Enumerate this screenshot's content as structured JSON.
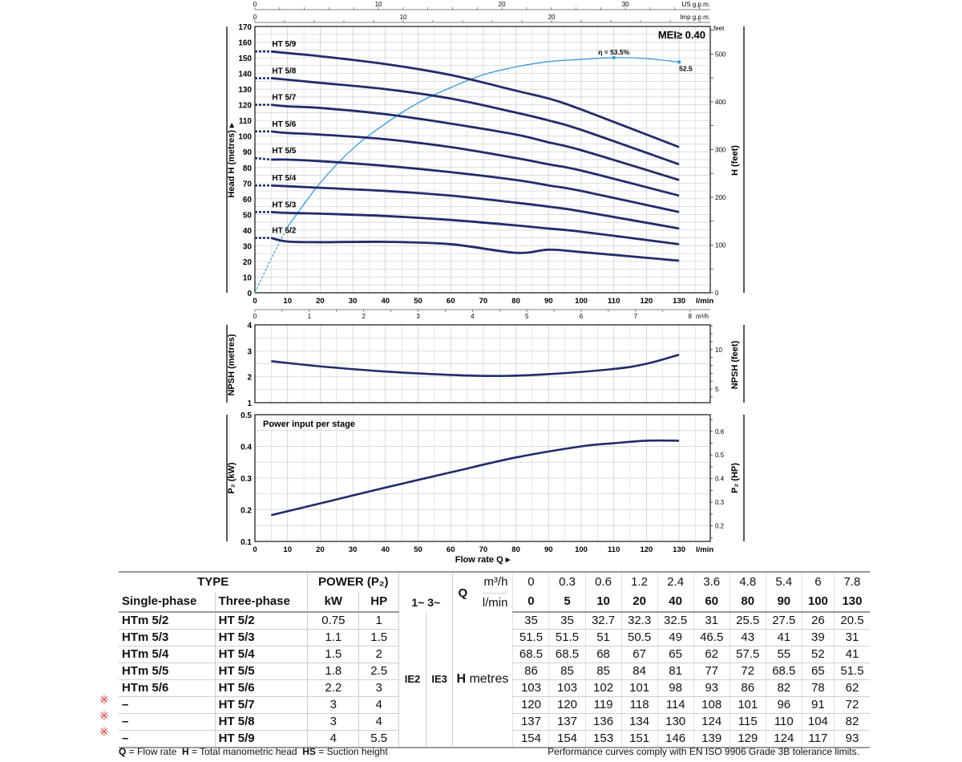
{
  "chart_data": [
    {
      "type": "line",
      "name": "head-curves",
      "xlabel": "l/min",
      "ylabel": "Head H (metres) ▸",
      "ylabel_right": "H (feet)",
      "feet_unit": "feet",
      "xlim": [
        0,
        139.6
      ],
      "ylim": [
        0,
        170
      ],
      "x_ticks": [
        0,
        10,
        20,
        30,
        40,
        50,
        60,
        70,
        80,
        90,
        100,
        110,
        120,
        130
      ],
      "y_ticks": [
        0,
        10,
        20,
        30,
        40,
        50,
        60,
        70,
        80,
        90,
        100,
        110,
        120,
        130,
        140,
        150,
        160,
        170
      ],
      "feet_ticks": [
        0,
        100,
        200,
        300,
        400,
        500
      ],
      "top_axis_us": {
        "label": "US g.p.m.",
        "ticks": [
          0,
          10,
          20,
          30
        ]
      },
      "top_axis_imp": {
        "label": "Imp g.p.m.",
        "ticks": [
          0,
          10,
          20
        ]
      },
      "bottom_axis_m3h": {
        "label": "m³/h",
        "ticks": [
          0,
          1,
          2,
          3,
          4,
          5,
          6,
          7,
          8
        ]
      },
      "annotation_mei": "MEI≥ 0.40",
      "x": [
        0,
        5,
        10,
        20,
        40,
        60,
        80,
        90,
        100,
        130
      ],
      "series": [
        {
          "name": "HT 5/9",
          "values": [
            154,
            154,
            153,
            151,
            146,
            139,
            129,
            124,
            117,
            93
          ]
        },
        {
          "name": "HT 5/8",
          "values": [
            137,
            137,
            136,
            134,
            130,
            124,
            115,
            110,
            104,
            82
          ]
        },
        {
          "name": "HT 5/7",
          "values": [
            120,
            120,
            119,
            118,
            114,
            108,
            101,
            96,
            91,
            72
          ]
        },
        {
          "name": "HT 5/6",
          "values": [
            103,
            103,
            102,
            101,
            98,
            93,
            86,
            82,
            78,
            62
          ]
        },
        {
          "name": "HT 5/5",
          "values": [
            86,
            85,
            85,
            84,
            81,
            77,
            72,
            68.5,
            65,
            51.5
          ]
        },
        {
          "name": "HT 5/4",
          "values": [
            68.5,
            68.5,
            68,
            67,
            65,
            62,
            57.5,
            55,
            52,
            41
          ]
        },
        {
          "name": "HT 5/3",
          "values": [
            51.5,
            51.5,
            51,
            50.5,
            49,
            46.5,
            43,
            41,
            39,
            31
          ]
        },
        {
          "name": "HT 5/2",
          "values": [
            35,
            35,
            32.7,
            32.3,
            32.5,
            31,
            25.5,
            27.5,
            26,
            20.5
          ]
        }
      ],
      "efficiency": {
        "name": "η",
        "x": [
          0,
          5,
          10,
          20,
          30,
          40,
          50,
          60,
          70,
          80,
          90,
          100,
          110,
          120,
          130
        ],
        "values": [
          0,
          7.8,
          15,
          25,
          32.8,
          38.5,
          43.2,
          46.7,
          49.6,
          51.4,
          52.6,
          53.1,
          53.5,
          53.3,
          52.5
        ],
        "scale_max": 60.6,
        "peak_label": "η = 53.5%",
        "end_label": "52.5"
      }
    },
    {
      "type": "line",
      "name": "npsh-curve",
      "ylabel": "NPSH (metres)",
      "ylabel_right": "NPSH (feet)",
      "ylim": [
        1,
        4
      ],
      "y_ticks": [
        1,
        2,
        3,
        4
      ],
      "feet_ticks": [
        5,
        10
      ],
      "x": [
        5,
        20,
        40,
        60,
        75,
        90,
        110,
        120,
        130
      ],
      "values": [
        2.6,
        2.4,
        2.2,
        2.07,
        2.03,
        2.1,
        2.3,
        2.5,
        2.85
      ]
    },
    {
      "type": "line",
      "name": "power-curve",
      "title": "Power input per stage",
      "ylabel": "P₂ (kW)",
      "ylabel_right": "P₂ (HP)",
      "xlabel": "Flow rate Q ▸",
      "x_unit": "l/min",
      "ylim": [
        0.1,
        0.5
      ],
      "y_ticks": [
        0.1,
        0.2,
        0.3,
        0.4,
        0.5
      ],
      "hp_ticks": [
        0.2,
        0.3,
        0.4,
        0.5,
        0.6
      ],
      "x": [
        5,
        20,
        40,
        60,
        80,
        100,
        110,
        120,
        130
      ],
      "values": [
        0.183,
        0.22,
        0.27,
        0.318,
        0.365,
        0.4,
        0.41,
        0.418,
        0.418
      ]
    }
  ],
  "table": {
    "type_header": "TYPE",
    "power_header": "POWER (P₂)",
    "single_header": "Single-phase",
    "three_header": "Three-phase",
    "kw_header": "kW",
    "hp_header": "HP",
    "phase_header": "1~ 3~",
    "q_header": "Q",
    "m3h_unit": "m³/h",
    "lmin_unit": "l/min",
    "m3h_values": [
      "0",
      "0.3",
      "0.6",
      "1.2",
      "2.4",
      "3.6",
      "4.8",
      "5.4",
      "6",
      "7.8"
    ],
    "lmin_values": [
      "0",
      "5",
      "10",
      "20",
      "40",
      "60",
      "80",
      "90",
      "100",
      "130"
    ],
    "ie2": "IE2",
    "ie3": "IE3",
    "h_label_bold": "H",
    "h_label": " metres",
    "mark_symbol": "※",
    "rows": [
      {
        "single": "HTm 5/2",
        "three": "HT 5/2",
        "kw": "0.75",
        "hp": "1",
        "marked": false,
        "h": [
          "35",
          "35",
          "32.7",
          "32.3",
          "32.5",
          "31",
          "25.5",
          "27.5",
          "26",
          "20.5"
        ]
      },
      {
        "single": "HTm 5/3",
        "three": "HT 5/3",
        "kw": "1.1",
        "hp": "1.5",
        "marked": false,
        "h": [
          "51.5",
          "51.5",
          "51",
          "50.5",
          "49",
          "46.5",
          "43",
          "41",
          "39",
          "31"
        ]
      },
      {
        "single": "HTm 5/4",
        "three": "HT 5/4",
        "kw": "1.5",
        "hp": "2",
        "marked": false,
        "h": [
          "68.5",
          "68.5",
          "68",
          "67",
          "65",
          "62",
          "57.5",
          "55",
          "52",
          "41"
        ]
      },
      {
        "single": "HTm 5/5",
        "three": "HT 5/5",
        "kw": "1.8",
        "hp": "2.5",
        "marked": false,
        "h": [
          "86",
          "85",
          "85",
          "84",
          "81",
          "77",
          "72",
          "68.5",
          "65",
          "51.5"
        ]
      },
      {
        "single": "HTm 5/6",
        "three": "HT 5/6",
        "kw": "2.2",
        "hp": "3",
        "marked": false,
        "h": [
          "103",
          "103",
          "102",
          "101",
          "98",
          "93",
          "86",
          "82",
          "78",
          "62"
        ]
      },
      {
        "single": "–",
        "three": "HT 5/7",
        "kw": "3",
        "hp": "4",
        "marked": true,
        "h": [
          "120",
          "120",
          "119",
          "118",
          "114",
          "108",
          "101",
          "96",
          "91",
          "72"
        ]
      },
      {
        "single": "–",
        "three": "HT 5/8",
        "kw": "3",
        "hp": "4",
        "marked": true,
        "h": [
          "137",
          "137",
          "136",
          "134",
          "130",
          "124",
          "115",
          "110",
          "104",
          "82"
        ]
      },
      {
        "single": "–",
        "three": "HT 5/9",
        "kw": "4",
        "hp": "5.5",
        "marked": true,
        "h": [
          "154",
          "154",
          "153",
          "151",
          "146",
          "139",
          "129",
          "124",
          "117",
          "93"
        ]
      }
    ]
  },
  "footer": {
    "q_abbr": "Q",
    "q_text": " = Flow rate  ",
    "h_abbr": "H",
    "h_text": " = Total manometric head  ",
    "hs_abbr": "HS",
    "hs_text": " = Suction height",
    "compliance": "Performance curves comply with EN ISO 9906 Grade 3B tolerance limits."
  },
  "colors": {
    "curve": "#1f2d6b",
    "efficiency": "#3a9ad9",
    "grid": "#cfcfcf"
  }
}
